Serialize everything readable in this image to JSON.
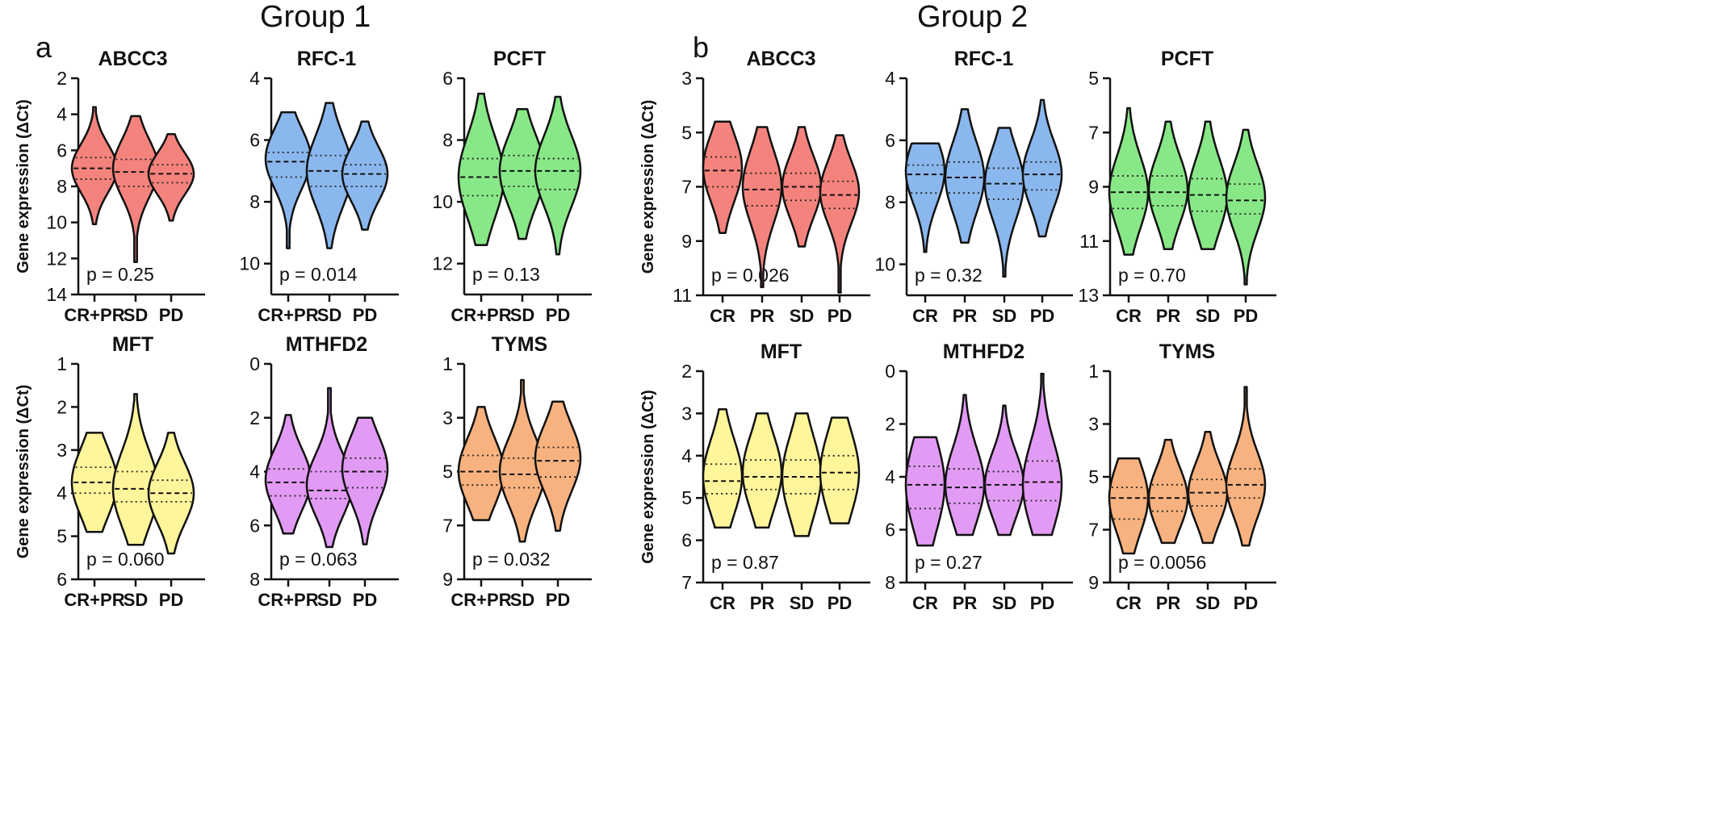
{
  "groups": [
    {
      "title": "Group 1",
      "panel": "a"
    },
    {
      "title": "Group 2",
      "panel": "b"
    }
  ],
  "ylabel": "Gene expression (ΔCt)",
  "chart_data": [
    {
      "type": "violin",
      "group": "Group 1",
      "panel": "a",
      "title": "ABCC3",
      "ylabel": "Gene expression (ΔCt)",
      "ylim": [
        2,
        14
      ],
      "y_reversed": true,
      "yticks": [
        2,
        4,
        6,
        8,
        10,
        12,
        14
      ],
      "categories": [
        "CR+PR",
        "SD",
        "PD"
      ],
      "color": "#f4837d",
      "p_value": "p = 0.25",
      "violins": [
        {
          "category": "CR+PR",
          "range": [
            3.6,
            10.1
          ],
          "median": 7.0,
          "q1": 6.4,
          "q3": 7.6,
          "peak": 7.0
        },
        {
          "category": "SD",
          "range": [
            4.1,
            12.2
          ],
          "median": 7.2,
          "q1": 6.5,
          "q3": 8.0,
          "peak": 7.0
        },
        {
          "category": "PD",
          "range": [
            5.1,
            9.9
          ],
          "median": 7.3,
          "q1": 6.8,
          "q3": 7.8,
          "peak": 7.3
        }
      ]
    },
    {
      "type": "violin",
      "group": "Group 1",
      "panel": "a",
      "title": "RFC-1",
      "ylabel": "",
      "ylim": [
        4,
        11
      ],
      "y_reversed": true,
      "yticks": [
        4,
        6,
        8,
        10
      ],
      "categories": [
        "CR+PR",
        "SD",
        "PD"
      ],
      "color": "#8ab8ee",
      "p_value": "p = 0.014",
      "violins": [
        {
          "category": "CR+PR",
          "range": [
            5.1,
            9.5
          ],
          "median": 6.7,
          "q1": 6.4,
          "q3": 7.2,
          "peak": 6.6
        },
        {
          "category": "SD",
          "range": [
            4.8,
            9.5
          ],
          "median": 7.0,
          "q1": 6.5,
          "q3": 7.5,
          "peak": 7.0
        },
        {
          "category": "PD",
          "range": [
            5.4,
            8.9
          ],
          "median": 7.1,
          "q1": 6.8,
          "q3": 7.5,
          "peak": 7.1
        }
      ]
    },
    {
      "type": "violin",
      "group": "Group 1",
      "panel": "a",
      "title": "PCFT",
      "ylabel": "",
      "ylim": [
        6,
        13
      ],
      "y_reversed": true,
      "yticks": [
        6,
        8,
        10,
        12
      ],
      "categories": [
        "CR+PR",
        "SD",
        "PD"
      ],
      "color": "#88e887",
      "p_value": "p = 0.13",
      "violins": [
        {
          "category": "CR+PR",
          "range": [
            6.5,
            11.4
          ],
          "median": 9.2,
          "q1": 8.6,
          "q3": 9.8,
          "peak": 9.2
        },
        {
          "category": "SD",
          "range": [
            7.0,
            11.2
          ],
          "median": 9.0,
          "q1": 8.5,
          "q3": 9.5,
          "peak": 9.0
        },
        {
          "category": "PD",
          "range": [
            6.6,
            11.7
          ],
          "median": 9.0,
          "q1": 8.6,
          "q3": 9.6,
          "peak": 9.0
        }
      ]
    },
    {
      "type": "violin",
      "group": "Group 1",
      "panel": "a",
      "title": "MFT",
      "ylabel": "Gene expression (ΔCt)",
      "ylim": [
        1,
        6
      ],
      "y_reversed": true,
      "yticks": [
        1,
        2,
        3,
        4,
        5,
        6
      ],
      "categories": [
        "CR+PR",
        "SD",
        "PD"
      ],
      "color": "#fff59a",
      "p_value": "p = 0.060",
      "violins": [
        {
          "category": "CR+PR",
          "range": [
            2.6,
            4.9
          ],
          "median": 3.75,
          "q1": 3.4,
          "q3": 4.0,
          "peak": 3.75
        },
        {
          "category": "SD",
          "range": [
            1.7,
            5.2
          ],
          "median": 3.9,
          "q1": 3.5,
          "q3": 4.2,
          "peak": 3.9
        },
        {
          "category": "PD",
          "range": [
            2.6,
            5.4
          ],
          "median": 4.0,
          "q1": 3.7,
          "q3": 4.2,
          "peak": 4.0
        }
      ]
    },
    {
      "type": "violin",
      "group": "Group 1",
      "panel": "a",
      "title": "MTHFD2",
      "ylabel": "",
      "ylim": [
        0,
        8
      ],
      "y_reversed": true,
      "yticks": [
        0,
        2,
        4,
        6,
        8
      ],
      "categories": [
        "CR+PR",
        "SD",
        "PD"
      ],
      "color": "#e29bf5",
      "p_value": "p = 0.063",
      "violins": [
        {
          "category": "CR+PR",
          "range": [
            1.9,
            6.3
          ],
          "median": 4.4,
          "q1": 3.9,
          "q3": 4.9,
          "peak": 4.3
        },
        {
          "category": "SD",
          "range": [
            0.9,
            6.8
          ],
          "median": 4.7,
          "q1": 4.0,
          "q3": 5.0,
          "peak": 4.5
        },
        {
          "category": "PD",
          "range": [
            2.0,
            6.7
          ],
          "median": 4.0,
          "q1": 3.5,
          "q3": 4.6,
          "peak": 3.9
        }
      ]
    },
    {
      "type": "violin",
      "group": "Group 1",
      "panel": "a",
      "title": "TYMS",
      "ylabel": "",
      "ylim": [
        1,
        9
      ],
      "y_reversed": true,
      "yticks": [
        1,
        3,
        5,
        7,
        9
      ],
      "categories": [
        "CR+PR",
        "SD",
        "PD"
      ],
      "color": "#f8b27f",
      "p_value": "p = 0.032",
      "violins": [
        {
          "category": "CR+PR",
          "range": [
            2.6,
            6.8
          ],
          "median": 5.0,
          "q1": 4.4,
          "q3": 5.5,
          "peak": 5.0
        },
        {
          "category": "SD",
          "range": [
            1.6,
            7.6
          ],
          "median": 5.1,
          "q1": 4.5,
          "q3": 5.6,
          "peak": 5.0
        },
        {
          "category": "PD",
          "range": [
            2.4,
            7.2
          ],
          "median": 4.6,
          "q1": 4.1,
          "q3": 5.2,
          "peak": 4.5
        }
      ]
    },
    {
      "type": "violin",
      "group": "Group 2",
      "panel": "b",
      "title": "ABCC3",
      "ylabel": "Gene expression (ΔCt)",
      "ylim": [
        3,
        11
      ],
      "y_reversed": true,
      "yticks": [
        3,
        5,
        7,
        9,
        11
      ],
      "categories": [
        "CR",
        "PR",
        "SD",
        "PD"
      ],
      "color": "#f4837d",
      "p_value": "p = 0.026",
      "violins": [
        {
          "category": "CR",
          "range": [
            4.6,
            8.7
          ],
          "median": 6.4,
          "q1": 5.9,
          "q3": 7.0,
          "peak": 6.3
        },
        {
          "category": "PR",
          "range": [
            4.8,
            10.7
          ],
          "median": 7.1,
          "q1": 6.5,
          "q3": 7.7,
          "peak": 7.0
        },
        {
          "category": "SD",
          "range": [
            4.8,
            9.2
          ],
          "median": 7.0,
          "q1": 6.5,
          "q3": 7.5,
          "peak": 7.0
        },
        {
          "category": "PD",
          "range": [
            5.1,
            10.9
          ],
          "median": 7.3,
          "q1": 6.8,
          "q3": 7.8,
          "peak": 7.2
        }
      ]
    },
    {
      "type": "violin",
      "group": "Group 2",
      "panel": "b",
      "title": "RFC-1",
      "ylabel": "",
      "ylim": [
        4,
        11
      ],
      "y_reversed": true,
      "yticks": [
        4,
        6,
        8,
        10
      ],
      "categories": [
        "CR",
        "PR",
        "SD",
        "PD"
      ],
      "color": "#8ab8ee",
      "p_value": "p = 0.32",
      "violins": [
        {
          "category": "CR",
          "range": [
            6.1,
            9.6
          ],
          "median": 7.1,
          "q1": 6.8,
          "q3": 7.7,
          "peak": 7.0
        },
        {
          "category": "PR",
          "range": [
            5.0,
            9.3
          ],
          "median": 7.2,
          "q1": 6.7,
          "q3": 7.7,
          "peak": 7.2
        },
        {
          "category": "SD",
          "range": [
            5.6,
            10.4
          ],
          "median": 7.4,
          "q1": 6.9,
          "q3": 7.9,
          "peak": 7.4
        },
        {
          "category": "PD",
          "range": [
            4.7,
            9.1
          ],
          "median": 7.1,
          "q1": 6.7,
          "q3": 7.6,
          "peak": 7.1
        }
      ]
    },
    {
      "type": "violin",
      "group": "Group 2",
      "panel": "b",
      "title": "PCFT",
      "ylabel": "",
      "ylim": [
        5,
        13
      ],
      "y_reversed": true,
      "yticks": [
        5,
        7,
        9,
        11,
        13
      ],
      "categories": [
        "CR",
        "PR",
        "SD",
        "PD"
      ],
      "color": "#88e887",
      "p_value": "p = 0.70",
      "violins": [
        {
          "category": "CR",
          "range": [
            6.1,
            11.5
          ],
          "median": 9.2,
          "q1": 8.6,
          "q3": 9.8,
          "peak": 9.2
        },
        {
          "category": "PR",
          "range": [
            6.6,
            11.3
          ],
          "median": 9.2,
          "q1": 8.6,
          "q3": 9.7,
          "peak": 9.1
        },
        {
          "category": "SD",
          "range": [
            6.6,
            11.3
          ],
          "median": 9.3,
          "q1": 8.7,
          "q3": 9.9,
          "peak": 9.3
        },
        {
          "category": "PD",
          "range": [
            6.9,
            12.6
          ],
          "median": 9.5,
          "q1": 8.9,
          "q3": 10.0,
          "peak": 9.4
        }
      ]
    },
    {
      "type": "violin",
      "group": "Group 2",
      "panel": "b",
      "title": "MFT",
      "ylabel": "Gene expression (ΔCt)",
      "ylim": [
        2,
        7
      ],
      "y_reversed": true,
      "yticks": [
        2,
        3,
        4,
        5,
        6,
        7
      ],
      "categories": [
        "CR",
        "PR",
        "SD",
        "PD"
      ],
      "color": "#fff59a",
      "p_value": "p = 0.87",
      "violins": [
        {
          "category": "CR",
          "range": [
            2.9,
            5.7
          ],
          "median": 4.6,
          "q1": 4.2,
          "q3": 4.9,
          "peak": 4.5
        },
        {
          "category": "PR",
          "range": [
            3.0,
            5.7
          ],
          "median": 4.5,
          "q1": 4.1,
          "q3": 4.8,
          "peak": 4.4
        },
        {
          "category": "SD",
          "range": [
            3.0,
            5.9
          ],
          "median": 4.5,
          "q1": 4.1,
          "q3": 4.9,
          "peak": 4.5
        },
        {
          "category": "PD",
          "range": [
            3.1,
            5.6
          ],
          "median": 4.4,
          "q1": 4.0,
          "q3": 4.8,
          "peak": 4.4
        }
      ]
    },
    {
      "type": "violin",
      "group": "Group 2",
      "panel": "b",
      "title": "MTHFD2",
      "ylabel": "",
      "ylim": [
        0,
        8
      ],
      "y_reversed": true,
      "yticks": [
        0,
        2,
        4,
        6,
        8
      ],
      "categories": [
        "CR",
        "PR",
        "SD",
        "PD"
      ],
      "color": "#e29bf5",
      "p_value": "p = 0.27",
      "violins": [
        {
          "category": "CR",
          "range": [
            2.5,
            6.6
          ],
          "median": 4.3,
          "q1": 3.6,
          "q3": 5.2,
          "peak": 4.3
        },
        {
          "category": "PR",
          "range": [
            0.9,
            6.2
          ],
          "median": 4.4,
          "q1": 3.7,
          "q3": 5.0,
          "peak": 4.3
        },
        {
          "category": "SD",
          "range": [
            1.3,
            6.2
          ],
          "median": 4.3,
          "q1": 3.8,
          "q3": 4.9,
          "peak": 4.3
        },
        {
          "category": "PD",
          "range": [
            0.1,
            6.2
          ],
          "median": 4.2,
          "q1": 3.4,
          "q3": 4.9,
          "peak": 4.3
        }
      ]
    },
    {
      "type": "violin",
      "group": "Group 2",
      "panel": "b",
      "title": "TYMS",
      "ylabel": "",
      "ylim": [
        1,
        9
      ],
      "y_reversed": true,
      "yticks": [
        1,
        3,
        5,
        7,
        9
      ],
      "categories": [
        "CR",
        "PR",
        "SD",
        "PD"
      ],
      "color": "#f8b27f",
      "p_value": "p = 0.0056",
      "violins": [
        {
          "category": "CR",
          "range": [
            4.3,
            7.9
          ],
          "median": 5.8,
          "q1": 5.4,
          "q3": 6.6,
          "peak": 5.8
        },
        {
          "category": "PR",
          "range": [
            3.6,
            7.5
          ],
          "median": 5.8,
          "q1": 5.3,
          "q3": 6.3,
          "peak": 5.8
        },
        {
          "category": "SD",
          "range": [
            3.3,
            7.5
          ],
          "median": 5.6,
          "q1": 5.1,
          "q3": 6.1,
          "peak": 5.6
        },
        {
          "category": "PD",
          "range": [
            1.6,
            7.6
          ],
          "median": 5.3,
          "q1": 4.7,
          "q3": 5.8,
          "peak": 5.3
        }
      ]
    }
  ]
}
